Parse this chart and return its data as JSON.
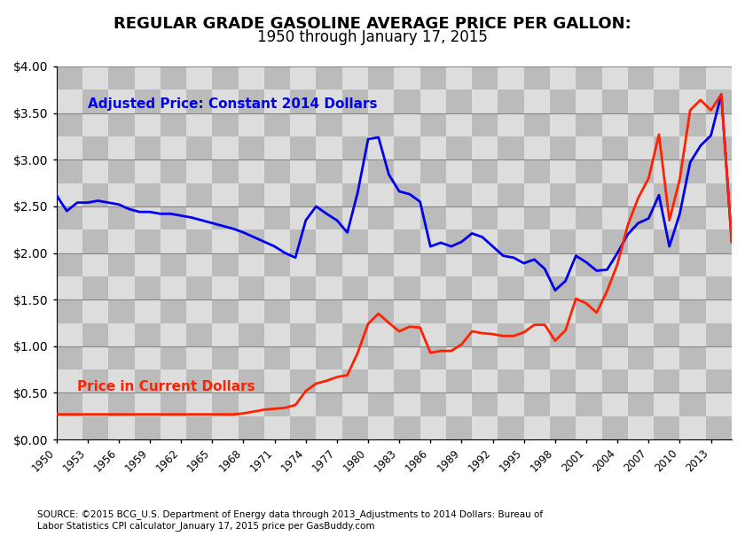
{
  "title_line1": "REGULAR GRADE GASOLINE AVERAGE PRICE PER GALLON:",
  "title_line2": "1950 through January 17, 2015",
  "source_text": "SOURCE: ©2015 BCG_U.S. Department of Energy data through 2013_Adjustments to 2014 Dollars: Bureau of\nLabor Statistics CPI calculator_January 17, 2015 price per GasBuddy.com",
  "label_adjusted": "Adjusted Price: Constant 2014 Dollars",
  "label_current": "Price in Current Dollars",
  "color_adjusted": "#0000EE",
  "color_current": "#FF2200",
  "ylim": [
    0.0,
    4.0
  ],
  "yticks": [
    0.0,
    0.5,
    1.0,
    1.5,
    2.0,
    2.5,
    3.0,
    3.5,
    4.0
  ],
  "years": [
    1950,
    1951,
    1952,
    1953,
    1954,
    1955,
    1956,
    1957,
    1958,
    1959,
    1960,
    1961,
    1962,
    1963,
    1964,
    1965,
    1966,
    1967,
    1968,
    1969,
    1970,
    1971,
    1972,
    1973,
    1974,
    1975,
    1976,
    1977,
    1978,
    1979,
    1980,
    1981,
    1982,
    1983,
    1984,
    1985,
    1986,
    1987,
    1988,
    1989,
    1990,
    1991,
    1992,
    1993,
    1994,
    1995,
    1996,
    1997,
    1998,
    1999,
    2000,
    2001,
    2002,
    2003,
    2004,
    2005,
    2006,
    2007,
    2008,
    2009,
    2010,
    2011,
    2012,
    2013,
    2014,
    2015
  ],
  "adjusted": [
    2.62,
    2.45,
    2.54,
    2.54,
    2.56,
    2.54,
    2.52,
    2.47,
    2.44,
    2.44,
    2.42,
    2.42,
    2.4,
    2.38,
    2.35,
    2.32,
    2.29,
    2.26,
    2.22,
    2.17,
    2.12,
    2.07,
    2.0,
    1.95,
    2.35,
    2.5,
    2.42,
    2.35,
    2.22,
    2.65,
    3.22,
    3.24,
    2.84,
    2.66,
    2.63,
    2.55,
    2.07,
    2.11,
    2.07,
    2.12,
    2.21,
    2.17,
    2.07,
    1.97,
    1.95,
    1.89,
    1.93,
    1.83,
    1.6,
    1.7,
    1.97,
    1.9,
    1.81,
    1.82,
    2.0,
    2.2,
    2.32,
    2.37,
    2.62,
    2.07,
    2.42,
    2.97,
    3.15,
    3.26,
    3.7,
    2.12
  ],
  "current": [
    0.27,
    0.27,
    0.27,
    0.27,
    0.27,
    0.27,
    0.27,
    0.27,
    0.27,
    0.27,
    0.27,
    0.27,
    0.27,
    0.27,
    0.27,
    0.27,
    0.27,
    0.27,
    0.28,
    0.3,
    0.32,
    0.33,
    0.34,
    0.37,
    0.52,
    0.6,
    0.63,
    0.67,
    0.69,
    0.93,
    1.24,
    1.35,
    1.25,
    1.16,
    1.21,
    1.2,
    0.93,
    0.95,
    0.95,
    1.02,
    1.16,
    1.14,
    1.13,
    1.11,
    1.11,
    1.15,
    1.23,
    1.23,
    1.06,
    1.17,
    1.51,
    1.46,
    1.36,
    1.59,
    1.88,
    2.3,
    2.59,
    2.8,
    3.27,
    2.35,
    2.79,
    3.53,
    3.64,
    3.53,
    3.7,
    2.12
  ],
  "xtick_years": [
    1950,
    1953,
    1956,
    1959,
    1962,
    1965,
    1968,
    1971,
    1974,
    1977,
    1980,
    1983,
    1986,
    1989,
    1992,
    1995,
    1998,
    2001,
    2004,
    2007,
    2010,
    2013
  ],
  "checker_light": "#DDDDDD",
  "checker_dark": "#BBBBBB",
  "grid_color": "#888888"
}
